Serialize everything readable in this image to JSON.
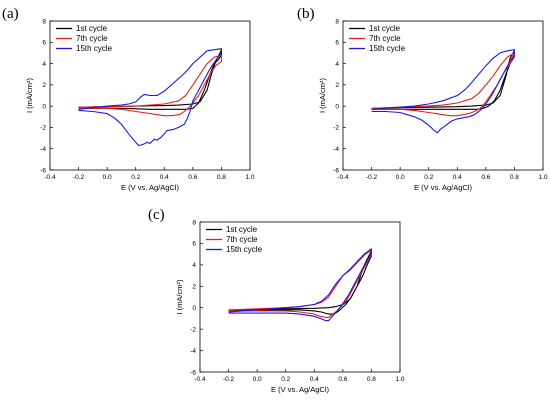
{
  "figure_labels": [
    "(a)",
    "(b)",
    "(c)"
  ],
  "colors": {
    "cycle1": "#000000",
    "cycle7": "#e8201a",
    "cycle15": "#1a1adc"
  },
  "chart_data": [
    {
      "type": "line",
      "panel": "(a)",
      "xlabel": "E (V vs. Ag/AgCl)",
      "ylabel": "I (mA/cm²)",
      "xlim": [
        -0.4,
        1.0
      ],
      "ylim": [
        -6,
        8
      ],
      "xticks": [
        -0.4,
        -0.2,
        0.0,
        0.2,
        0.4,
        0.6,
        0.8,
        1.0
      ],
      "yticks": [
        -6,
        -4,
        -2,
        0,
        2,
        4,
        6,
        8
      ],
      "legend": "top-left",
      "series": [
        {
          "name": "1st cycle",
          "color": "#000000",
          "x": [
            -0.2,
            0.0,
            0.2,
            0.4,
            0.5,
            0.6,
            0.65,
            0.7,
            0.73,
            0.76,
            0.79,
            0.8,
            0.8,
            0.78,
            0.75,
            0.72,
            0.68,
            0.64,
            0.6,
            0.55,
            0.5,
            0.4,
            0.3,
            0.2,
            0.1,
            0.0,
            -0.1,
            -0.2
          ],
          "y": [
            -0.1,
            -0.05,
            0.0,
            0.05,
            0.1,
            0.2,
            0.4,
            1.5,
            3.0,
            4.2,
            5.0,
            5.3,
            4.8,
            4.4,
            4.0,
            3.0,
            1.5,
            0.3,
            -0.2,
            -0.3,
            -0.3,
            -0.3,
            -0.3,
            -0.25,
            -0.2,
            -0.2,
            -0.2,
            -0.2
          ]
        },
        {
          "name": "7th cycle",
          "color": "#e8201a",
          "x": [
            -0.2,
            0.0,
            0.2,
            0.3,
            0.4,
            0.5,
            0.55,
            0.6,
            0.65,
            0.7,
            0.75,
            0.8,
            0.8,
            0.76,
            0.72,
            0.68,
            0.64,
            0.6,
            0.56,
            0.52,
            0.5,
            0.45,
            0.4,
            0.35,
            0.3,
            0.25,
            0.2,
            0.1,
            0.0,
            -0.1,
            -0.2
          ],
          "y": [
            -0.1,
            -0.05,
            0.0,
            0.1,
            0.2,
            0.5,
            1.0,
            2.0,
            3.0,
            4.0,
            4.6,
            4.8,
            4.2,
            3.8,
            3.0,
            2.0,
            1.0,
            0.3,
            -0.3,
            -0.7,
            -0.8,
            -0.9,
            -0.9,
            -0.8,
            -0.7,
            -0.6,
            -0.5,
            -0.3,
            -0.2,
            -0.2,
            -0.2
          ]
        },
        {
          "name": "15th cycle",
          "color": "#1a1adc",
          "x": [
            -0.2,
            0.0,
            0.1,
            0.15,
            0.2,
            0.23,
            0.26,
            0.3,
            0.35,
            0.4,
            0.45,
            0.5,
            0.55,
            0.6,
            0.65,
            0.7,
            0.75,
            0.8,
            0.8,
            0.76,
            0.72,
            0.68,
            0.64,
            0.6,
            0.58,
            0.56,
            0.54,
            0.5,
            0.46,
            0.42,
            0.4,
            0.38,
            0.35,
            0.33,
            0.3,
            0.28,
            0.25,
            0.22,
            0.2,
            0.15,
            0.1,
            0.05,
            0.0,
            -0.1,
            -0.2
          ],
          "y": [
            -0.3,
            0.0,
            0.1,
            0.2,
            0.4,
            0.8,
            1.1,
            1.0,
            1.0,
            1.4,
            2.0,
            2.6,
            3.2,
            4.0,
            4.6,
            5.2,
            5.3,
            5.4,
            5.0,
            4.3,
            3.5,
            2.5,
            1.5,
            0.5,
            -0.5,
            -1.2,
            -1.7,
            -2.0,
            -2.2,
            -2.3,
            -2.6,
            -2.9,
            -3.2,
            -3.1,
            -3.5,
            -3.4,
            -3.6,
            -3.7,
            -3.4,
            -2.6,
            -1.7,
            -1.1,
            -0.7,
            -0.5,
            -0.4
          ]
        }
      ]
    },
    {
      "type": "line",
      "panel": "(b)",
      "xlabel": "E (V vs. Ag/AgCl)",
      "ylabel": "I (mA/cm²)",
      "xlim": [
        -0.4,
        1.0
      ],
      "ylim": [
        -6,
        8
      ],
      "xticks": [
        -0.4,
        -0.2,
        0.0,
        0.2,
        0.4,
        0.6,
        0.8,
        1.0
      ],
      "yticks": [
        -6,
        -4,
        -2,
        0,
        2,
        4,
        6,
        8
      ],
      "legend": "top-left",
      "series": [
        {
          "name": "1st cycle",
          "color": "#000000",
          "x": [
            -0.2,
            0.0,
            0.2,
            0.4,
            0.5,
            0.6,
            0.65,
            0.7,
            0.74,
            0.77,
            0.8,
            0.8,
            0.77,
            0.74,
            0.7,
            0.66,
            0.62,
            0.58,
            0.54,
            0.5,
            0.4,
            0.3,
            0.2,
            0.1,
            0.0,
            -0.1,
            -0.2
          ],
          "y": [
            -0.2,
            -0.15,
            -0.1,
            -0.05,
            0.0,
            0.1,
            0.3,
            1.0,
            2.8,
            4.5,
            5.2,
            4.7,
            4.0,
            3.0,
            1.5,
            0.5,
            0.0,
            -0.2,
            -0.3,
            -0.3,
            -0.3,
            -0.3,
            -0.3,
            -0.3,
            -0.3,
            -0.3,
            -0.3
          ]
        },
        {
          "name": "7th cycle",
          "color": "#e8201a",
          "x": [
            -0.2,
            0.0,
            0.2,
            0.3,
            0.4,
            0.5,
            0.55,
            0.6,
            0.65,
            0.7,
            0.75,
            0.8,
            0.8,
            0.76,
            0.72,
            0.68,
            0.64,
            0.6,
            0.56,
            0.52,
            0.48,
            0.44,
            0.4,
            0.35,
            0.3,
            0.25,
            0.2,
            0.1,
            0.0,
            -0.1,
            -0.2
          ],
          "y": [
            -0.2,
            -0.1,
            0.0,
            0.1,
            0.3,
            0.7,
            1.2,
            2.0,
            2.8,
            3.8,
            4.6,
            5.0,
            4.6,
            3.8,
            3.0,
            2.0,
            1.2,
            0.4,
            -0.2,
            -0.5,
            -0.7,
            -0.8,
            -0.9,
            -0.9,
            -0.8,
            -0.7,
            -0.6,
            -0.4,
            -0.3,
            -0.3,
            -0.3
          ]
        },
        {
          "name": "15th cycle",
          "color": "#1a1adc",
          "x": [
            -0.2,
            0.0,
            0.1,
            0.2,
            0.3,
            0.4,
            0.45,
            0.5,
            0.55,
            0.6,
            0.65,
            0.7,
            0.75,
            0.8,
            0.8,
            0.76,
            0.72,
            0.68,
            0.64,
            0.6,
            0.56,
            0.52,
            0.48,
            0.44,
            0.4,
            0.36,
            0.32,
            0.28,
            0.26,
            0.24,
            0.2,
            0.15,
            0.1,
            0.05,
            0.0,
            -0.1,
            -0.2
          ],
          "y": [
            -0.3,
            -0.1,
            0.0,
            0.2,
            0.5,
            1.0,
            1.5,
            2.2,
            3.0,
            3.8,
            4.5,
            5.0,
            5.2,
            5.3,
            4.9,
            4.0,
            3.0,
            2.0,
            1.0,
            0.2,
            -0.4,
            -0.8,
            -1.0,
            -1.1,
            -1.2,
            -1.4,
            -1.8,
            -2.2,
            -2.5,
            -2.3,
            -1.8,
            -1.3,
            -1.0,
            -0.8,
            -0.6,
            -0.5,
            -0.5
          ]
        }
      ]
    },
    {
      "type": "line",
      "panel": "(c)",
      "xlabel": "E (V vs. Ag/AgCl)",
      "ylabel": "I (mA/cm²)",
      "xlim": [
        -0.4,
        1.0
      ],
      "ylim": [
        -6,
        8
      ],
      "xticks": [
        -0.4,
        -0.2,
        0.0,
        0.2,
        0.4,
        0.6,
        0.8,
        1.0
      ],
      "yticks": [
        -6,
        -4,
        -2,
        0,
        2,
        4,
        6,
        8
      ],
      "legend": "top-left",
      "series": [
        {
          "name": "1st cycle",
          "color": "#000000",
          "x": [
            -0.2,
            0.0,
            0.2,
            0.4,
            0.5,
            0.55,
            0.6,
            0.65,
            0.7,
            0.75,
            0.8,
            0.8,
            0.77,
            0.74,
            0.7,
            0.66,
            0.62,
            0.58,
            0.55,
            0.52,
            0.5,
            0.45,
            0.4,
            0.3,
            0.2,
            0.1,
            0.0,
            -0.1,
            -0.2
          ],
          "y": [
            -0.2,
            -0.15,
            -0.1,
            -0.05,
            0.0,
            0.1,
            0.3,
            0.8,
            2.0,
            4.0,
            5.3,
            4.8,
            4.0,
            3.0,
            2.0,
            1.0,
            0.3,
            -0.2,
            -0.5,
            -0.6,
            -0.6,
            -0.4,
            -0.3,
            -0.2,
            -0.2,
            -0.2,
            -0.2,
            -0.2,
            -0.2
          ]
        },
        {
          "name": "7th cycle",
          "color": "#e8201a",
          "x": [
            -0.2,
            0.0,
            0.2,
            0.3,
            0.4,
            0.45,
            0.5,
            0.55,
            0.6,
            0.65,
            0.7,
            0.75,
            0.8,
            0.8,
            0.76,
            0.72,
            0.68,
            0.64,
            0.6,
            0.56,
            0.52,
            0.5,
            0.48,
            0.44,
            0.4,
            0.3,
            0.2,
            0.1,
            0.0,
            -0.1,
            -0.2
          ],
          "y": [
            -0.2,
            -0.1,
            0.0,
            0.1,
            0.3,
            0.5,
            1.0,
            2.0,
            3.0,
            3.5,
            4.2,
            4.9,
            5.4,
            4.9,
            4.0,
            3.0,
            2.0,
            1.0,
            0.3,
            -0.3,
            -0.7,
            -0.9,
            -0.9,
            -0.8,
            -0.6,
            -0.4,
            -0.3,
            -0.3,
            -0.3,
            -0.3,
            -0.3
          ]
        },
        {
          "name": "15th cycle",
          "color": "#1a1adc",
          "x": [
            -0.2,
            0.0,
            0.2,
            0.3,
            0.4,
            0.45,
            0.5,
            0.55,
            0.6,
            0.65,
            0.7,
            0.75,
            0.8,
            0.8,
            0.76,
            0.72,
            0.68,
            0.64,
            0.6,
            0.56,
            0.52,
            0.5,
            0.48,
            0.44,
            0.4,
            0.3,
            0.2,
            0.1,
            0.0,
            -0.1,
            -0.2
          ],
          "y": [
            -0.4,
            -0.2,
            0.0,
            0.1,
            0.3,
            0.6,
            1.2,
            2.2,
            3.0,
            3.6,
            4.3,
            5.0,
            5.5,
            5.0,
            4.2,
            3.2,
            2.2,
            1.2,
            0.4,
            -0.3,
            -0.9,
            -1.2,
            -1.2,
            -1.0,
            -0.8,
            -0.6,
            -0.5,
            -0.5,
            -0.5,
            -0.5,
            -0.5
          ]
        }
      ]
    }
  ]
}
